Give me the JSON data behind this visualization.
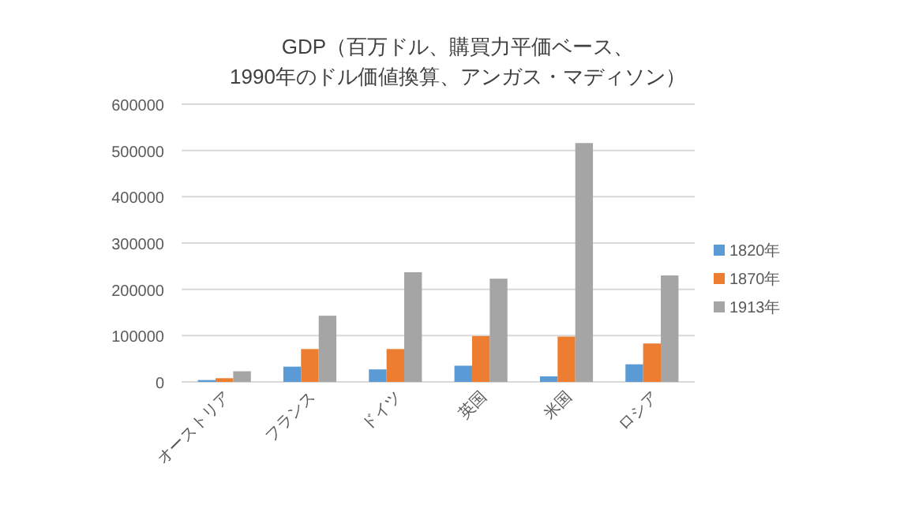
{
  "chart_data": {
    "type": "bar",
    "title": "GDP（百万ドル、購買力平価ベース、1990年のドル価値換算、アンガス・マディソン）",
    "categories": [
      "オーストリア",
      "フランス",
      "ドイツ",
      "英国",
      "米国",
      "ロシア"
    ],
    "series": [
      {
        "name": "1820年",
        "color": "#5b9bd5",
        "values": [
          4000,
          33000,
          27000,
          35000,
          12000,
          38000
        ]
      },
      {
        "name": "1870年",
        "color": "#ed7d31",
        "values": [
          8000,
          71000,
          71000,
          99000,
          98000,
          83000
        ]
      },
      {
        "name": "1913年",
        "color": "#a5a5a5",
        "values": [
          23000,
          143000,
          237000,
          223000,
          516000,
          230000
        ]
      }
    ],
    "ylim": [
      0,
      600000
    ],
    "yticks": [
      0,
      100000,
      200000,
      300000,
      400000,
      500000,
      600000
    ],
    "grid": "y",
    "legend": "right"
  }
}
